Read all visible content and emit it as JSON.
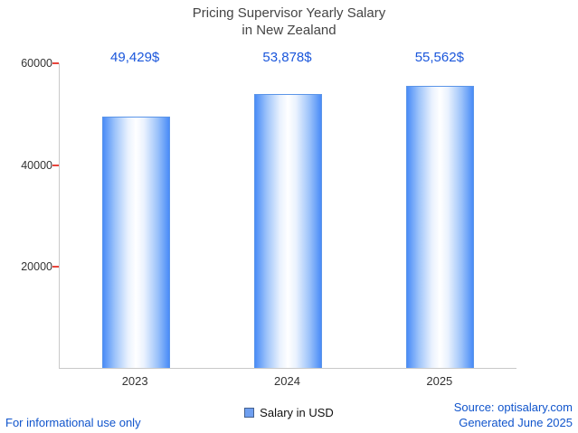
{
  "title": {
    "line1": "Pricing Supervisor Yearly Salary",
    "line2": "in New Zealand"
  },
  "chart_data": {
    "type": "bar",
    "title": "Pricing Supervisor Yearly Salary in New Zealand",
    "categories": [
      "2023",
      "2024",
      "2025"
    ],
    "values": [
      49429,
      53878,
      55562
    ],
    "value_labels": [
      "49,429$",
      "53,878$",
      "55,562$"
    ],
    "series_name": "Salary in USD",
    "xlabel": "",
    "ylabel": "",
    "ylim": [
      0,
      60000
    ],
    "yticks": [
      20000,
      40000,
      60000
    ],
    "ytick_labels_top_to_bottom": [
      "60000",
      "40000",
      "20000"
    ],
    "grid": false,
    "legend_position": "bottom-center",
    "bar_edge_color": "#4a8cf7",
    "bar_center_color": "#ffffff"
  },
  "legend": {
    "label": "Salary in USD",
    "swatch_color": "#6f9ff0"
  },
  "footer": {
    "disclaimer": "For informational use only",
    "source": "Source: optisalary.com",
    "generated": "Generated June 2025"
  },
  "colors": {
    "value_label_text": "#1a56db",
    "footer_text": "#1155cc",
    "title_text": "#454545",
    "axis_line": "#c9c9c9",
    "tick_mark": "#e8453c"
  }
}
